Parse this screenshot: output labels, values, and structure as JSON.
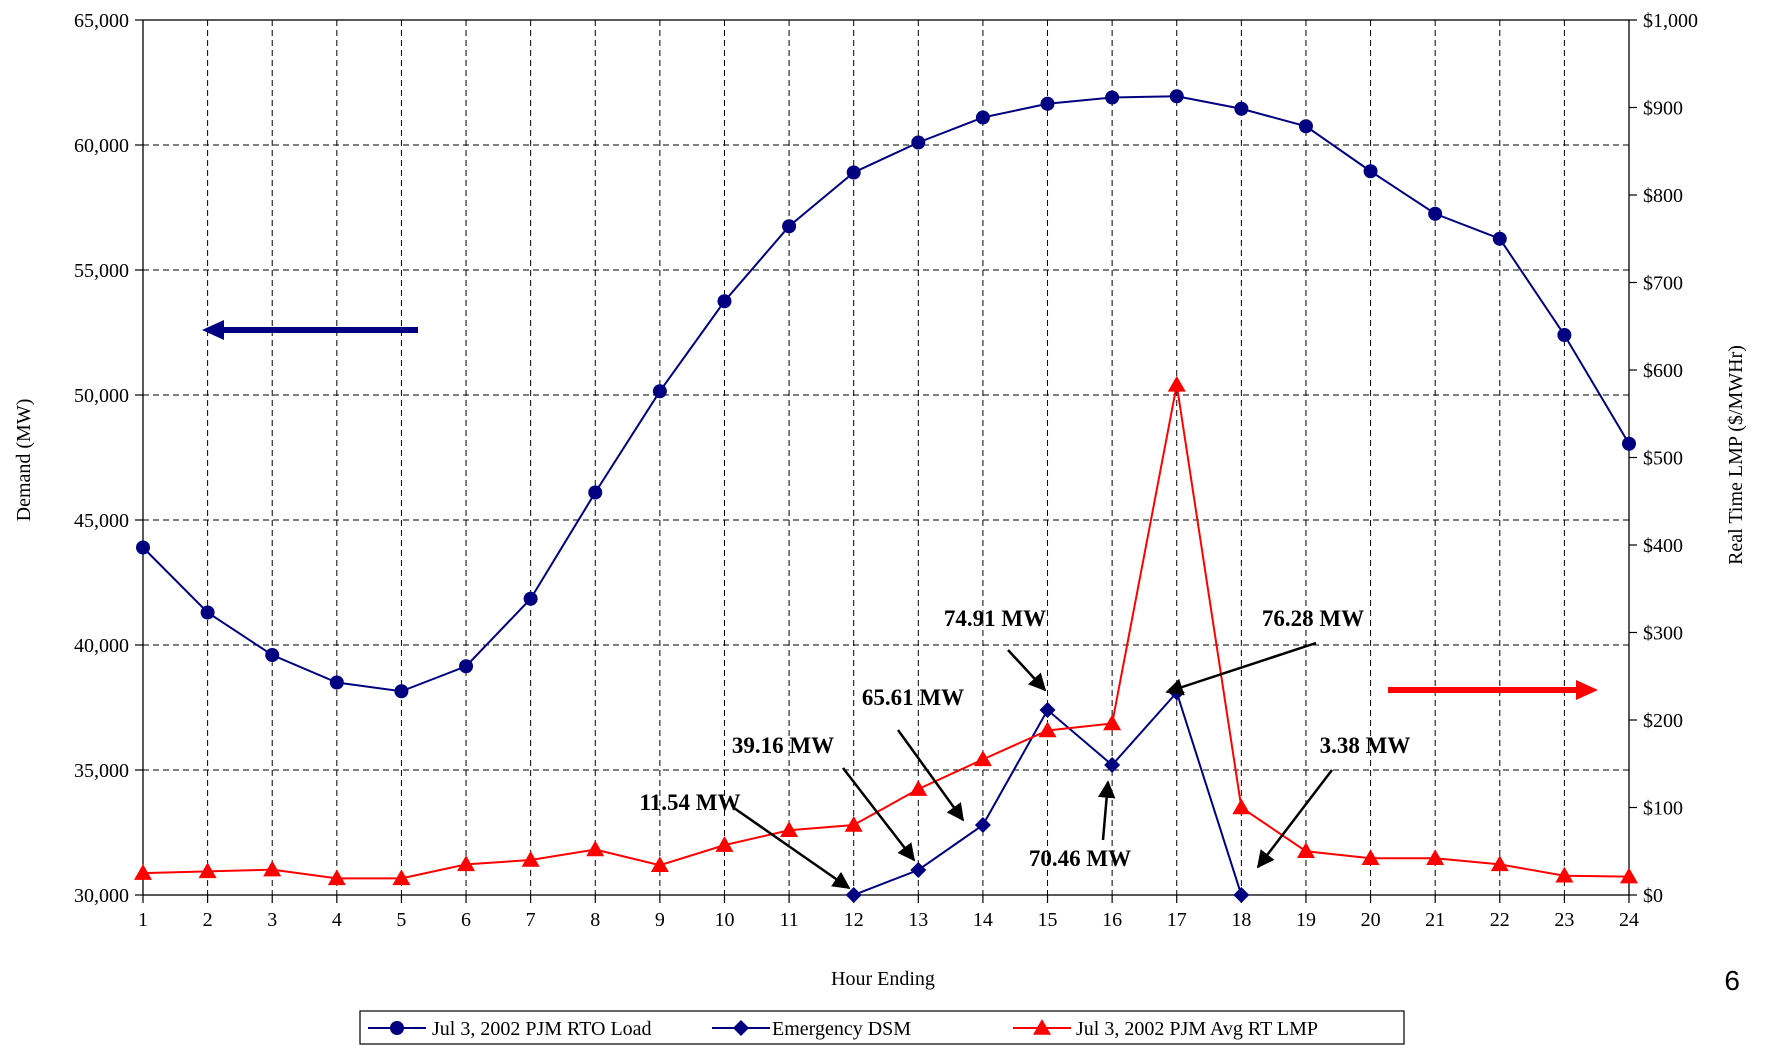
{
  "chart_data": {
    "type": "line",
    "xlabel": "Hour Ending",
    "ylabel": "Demand (MW)",
    "y2label": "Real Time LMP ($/MWHr)",
    "x": [
      1,
      2,
      3,
      4,
      5,
      6,
      7,
      8,
      9,
      10,
      11,
      12,
      13,
      14,
      15,
      16,
      17,
      18,
      19,
      20,
      21,
      22,
      23,
      24
    ],
    "ylim": [
      30000,
      65000
    ],
    "y_ticks": [
      30000,
      35000,
      40000,
      45000,
      50000,
      55000,
      60000,
      65000
    ],
    "y_tick_labels": [
      "30,000",
      "35,000",
      "40,000",
      "45,000",
      "50,000",
      "55,000",
      "60,000",
      "65,000"
    ],
    "y2lim": [
      0,
      1000
    ],
    "y2_ticks": [
      0,
      100,
      200,
      300,
      400,
      500,
      600,
      700,
      800,
      900,
      1000
    ],
    "y2_tick_labels": [
      "$0",
      "$100",
      "$200",
      "$300",
      "$400",
      "$500",
      "$600",
      "$700",
      "$800",
      "$900",
      "$1,000"
    ],
    "grid": true,
    "legend_position": "bottom",
    "series": [
      {
        "name": "Jul 3, 2002 PJM RTO Load",
        "axis": "left",
        "color": "#000080",
        "marker": "circle",
        "values": [
          43900,
          41300,
          39600,
          38500,
          38150,
          39150,
          41850,
          46100,
          50150,
          53750,
          56750,
          58900,
          60100,
          61100,
          61650,
          61900,
          61950,
          61450,
          60750,
          58950,
          57250,
          56250,
          52400,
          48050
        ]
      },
      {
        "name": "Emergency DSM",
        "axis": "left",
        "color": "#000080",
        "marker": "diamond",
        "x": [
          12,
          13,
          14,
          15,
          16,
          17,
          18
        ],
        "values": [
          30000,
          31000,
          32800,
          37400,
          35200,
          38100,
          30000
        ]
      },
      {
        "name": "Jul 3, 2002 PJM Avg RT LMP",
        "axis": "right",
        "color": "#ff0000",
        "marker": "triangle",
        "values": [
          25,
          27,
          29,
          19,
          19,
          35,
          40,
          52,
          34,
          57,
          74,
          80,
          121,
          155,
          188,
          196,
          583,
          100,
          50,
          42,
          42,
          35,
          22,
          21
        ]
      }
    ],
    "annotations": [
      {
        "text": "11.54 MW",
        "target_x": 12,
        "target_series": "Emergency DSM"
      },
      {
        "text": "39.16 MW",
        "target_x": 13,
        "target_series": "Emergency DSM"
      },
      {
        "text": "65.61 MW",
        "target_x": 14,
        "target_series": "Emergency DSM"
      },
      {
        "text": "74.91 MW",
        "target_x": 15,
        "target_series": "Emergency DSM"
      },
      {
        "text": "70.46 MW",
        "target_x": 16,
        "target_series": "Emergency DSM"
      },
      {
        "text": "76.28 MW",
        "target_x": 17,
        "target_series": "Emergency DSM"
      },
      {
        "text": "3.38 MW",
        "target_x": 18,
        "target_series": "Emergency DSM"
      }
    ],
    "axis_indicators": [
      {
        "points_to": "left",
        "color": "#000080"
      },
      {
        "points_to": "right",
        "color": "#ff0000"
      }
    ]
  },
  "page_number": "6"
}
